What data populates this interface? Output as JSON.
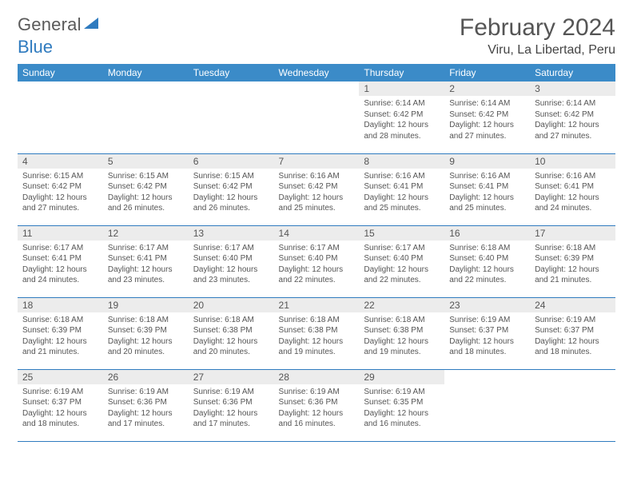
{
  "brand": {
    "part1": "General",
    "part2": "Blue"
  },
  "title": "February 2024",
  "location": "Viru, La Libertad, Peru",
  "colors": {
    "header_bg": "#3b8bc8",
    "accent_line": "#2f7bbf",
    "daynum_bg": "#ececec",
    "text": "#555555",
    "page_bg": "#ffffff"
  },
  "typography": {
    "title_fontsize": 30,
    "location_fontsize": 16,
    "dayname_fontsize": 12,
    "body_fontsize": 10
  },
  "day_names": [
    "Sunday",
    "Monday",
    "Tuesday",
    "Wednesday",
    "Thursday",
    "Friday",
    "Saturday"
  ],
  "weeks": [
    [
      null,
      null,
      null,
      null,
      {
        "n": "1",
        "sr": "Sunrise: 6:14 AM",
        "ss": "Sunset: 6:42 PM",
        "d1": "Daylight: 12 hours",
        "d2": "and 28 minutes."
      },
      {
        "n": "2",
        "sr": "Sunrise: 6:14 AM",
        "ss": "Sunset: 6:42 PM",
        "d1": "Daylight: 12 hours",
        "d2": "and 27 minutes."
      },
      {
        "n": "3",
        "sr": "Sunrise: 6:14 AM",
        "ss": "Sunset: 6:42 PM",
        "d1": "Daylight: 12 hours",
        "d2": "and 27 minutes."
      }
    ],
    [
      {
        "n": "4",
        "sr": "Sunrise: 6:15 AM",
        "ss": "Sunset: 6:42 PM",
        "d1": "Daylight: 12 hours",
        "d2": "and 27 minutes."
      },
      {
        "n": "5",
        "sr": "Sunrise: 6:15 AM",
        "ss": "Sunset: 6:42 PM",
        "d1": "Daylight: 12 hours",
        "d2": "and 26 minutes."
      },
      {
        "n": "6",
        "sr": "Sunrise: 6:15 AM",
        "ss": "Sunset: 6:42 PM",
        "d1": "Daylight: 12 hours",
        "d2": "and 26 minutes."
      },
      {
        "n": "7",
        "sr": "Sunrise: 6:16 AM",
        "ss": "Sunset: 6:42 PM",
        "d1": "Daylight: 12 hours",
        "d2": "and 25 minutes."
      },
      {
        "n": "8",
        "sr": "Sunrise: 6:16 AM",
        "ss": "Sunset: 6:41 PM",
        "d1": "Daylight: 12 hours",
        "d2": "and 25 minutes."
      },
      {
        "n": "9",
        "sr": "Sunrise: 6:16 AM",
        "ss": "Sunset: 6:41 PM",
        "d1": "Daylight: 12 hours",
        "d2": "and 25 minutes."
      },
      {
        "n": "10",
        "sr": "Sunrise: 6:16 AM",
        "ss": "Sunset: 6:41 PM",
        "d1": "Daylight: 12 hours",
        "d2": "and 24 minutes."
      }
    ],
    [
      {
        "n": "11",
        "sr": "Sunrise: 6:17 AM",
        "ss": "Sunset: 6:41 PM",
        "d1": "Daylight: 12 hours",
        "d2": "and 24 minutes."
      },
      {
        "n": "12",
        "sr": "Sunrise: 6:17 AM",
        "ss": "Sunset: 6:41 PM",
        "d1": "Daylight: 12 hours",
        "d2": "and 23 minutes."
      },
      {
        "n": "13",
        "sr": "Sunrise: 6:17 AM",
        "ss": "Sunset: 6:40 PM",
        "d1": "Daylight: 12 hours",
        "d2": "and 23 minutes."
      },
      {
        "n": "14",
        "sr": "Sunrise: 6:17 AM",
        "ss": "Sunset: 6:40 PM",
        "d1": "Daylight: 12 hours",
        "d2": "and 22 minutes."
      },
      {
        "n": "15",
        "sr": "Sunrise: 6:17 AM",
        "ss": "Sunset: 6:40 PM",
        "d1": "Daylight: 12 hours",
        "d2": "and 22 minutes."
      },
      {
        "n": "16",
        "sr": "Sunrise: 6:18 AM",
        "ss": "Sunset: 6:40 PM",
        "d1": "Daylight: 12 hours",
        "d2": "and 22 minutes."
      },
      {
        "n": "17",
        "sr": "Sunrise: 6:18 AM",
        "ss": "Sunset: 6:39 PM",
        "d1": "Daylight: 12 hours",
        "d2": "and 21 minutes."
      }
    ],
    [
      {
        "n": "18",
        "sr": "Sunrise: 6:18 AM",
        "ss": "Sunset: 6:39 PM",
        "d1": "Daylight: 12 hours",
        "d2": "and 21 minutes."
      },
      {
        "n": "19",
        "sr": "Sunrise: 6:18 AM",
        "ss": "Sunset: 6:39 PM",
        "d1": "Daylight: 12 hours",
        "d2": "and 20 minutes."
      },
      {
        "n": "20",
        "sr": "Sunrise: 6:18 AM",
        "ss": "Sunset: 6:38 PM",
        "d1": "Daylight: 12 hours",
        "d2": "and 20 minutes."
      },
      {
        "n": "21",
        "sr": "Sunrise: 6:18 AM",
        "ss": "Sunset: 6:38 PM",
        "d1": "Daylight: 12 hours",
        "d2": "and 19 minutes."
      },
      {
        "n": "22",
        "sr": "Sunrise: 6:18 AM",
        "ss": "Sunset: 6:38 PM",
        "d1": "Daylight: 12 hours",
        "d2": "and 19 minutes."
      },
      {
        "n": "23",
        "sr": "Sunrise: 6:19 AM",
        "ss": "Sunset: 6:37 PM",
        "d1": "Daylight: 12 hours",
        "d2": "and 18 minutes."
      },
      {
        "n": "24",
        "sr": "Sunrise: 6:19 AM",
        "ss": "Sunset: 6:37 PM",
        "d1": "Daylight: 12 hours",
        "d2": "and 18 minutes."
      }
    ],
    [
      {
        "n": "25",
        "sr": "Sunrise: 6:19 AM",
        "ss": "Sunset: 6:37 PM",
        "d1": "Daylight: 12 hours",
        "d2": "and 18 minutes."
      },
      {
        "n": "26",
        "sr": "Sunrise: 6:19 AM",
        "ss": "Sunset: 6:36 PM",
        "d1": "Daylight: 12 hours",
        "d2": "and 17 minutes."
      },
      {
        "n": "27",
        "sr": "Sunrise: 6:19 AM",
        "ss": "Sunset: 6:36 PM",
        "d1": "Daylight: 12 hours",
        "d2": "and 17 minutes."
      },
      {
        "n": "28",
        "sr": "Sunrise: 6:19 AM",
        "ss": "Sunset: 6:36 PM",
        "d1": "Daylight: 12 hours",
        "d2": "and 16 minutes."
      },
      {
        "n": "29",
        "sr": "Sunrise: 6:19 AM",
        "ss": "Sunset: 6:35 PM",
        "d1": "Daylight: 12 hours",
        "d2": "and 16 minutes."
      },
      null,
      null
    ]
  ]
}
